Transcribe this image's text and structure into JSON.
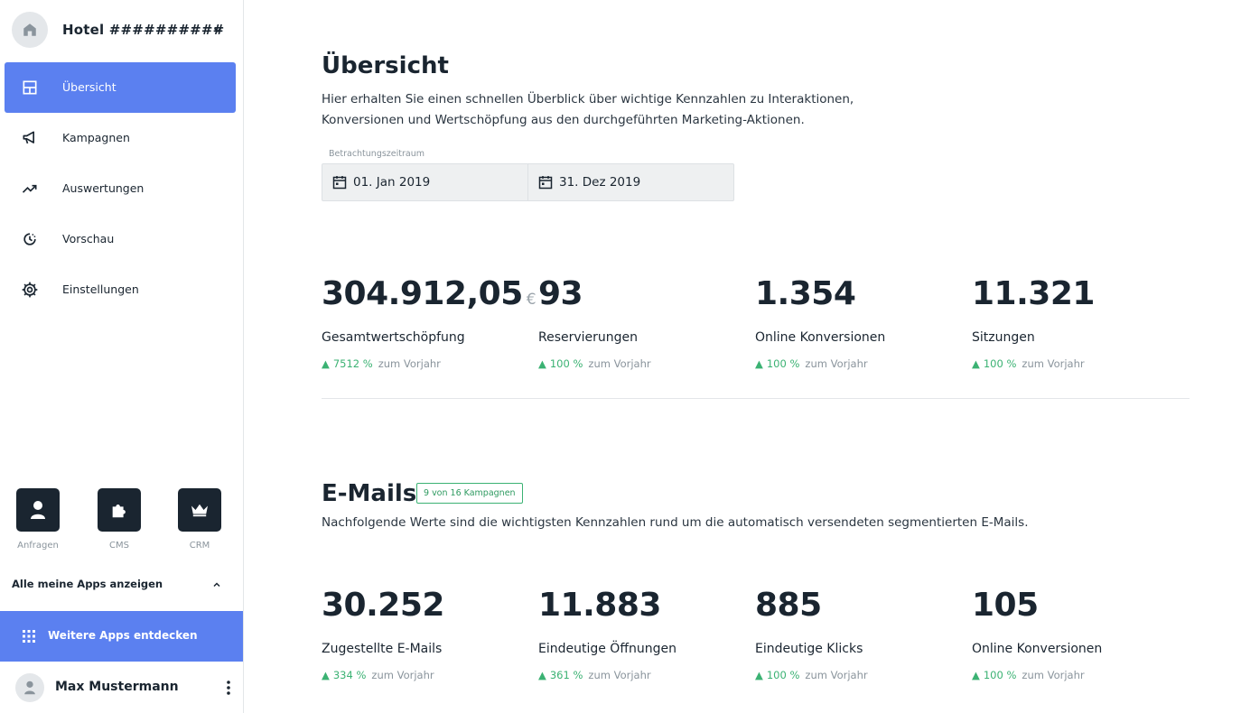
{
  "sidebar": {
    "hotel_name": "Hotel ##########",
    "nav": [
      {
        "label": "Übersicht",
        "icon": "layout-icon",
        "active": true
      },
      {
        "label": "Kampagnen",
        "icon": "megaphone-icon"
      },
      {
        "label": "Auswertungen",
        "icon": "trending-up-icon"
      },
      {
        "label": "Vorschau",
        "icon": "history-icon"
      },
      {
        "label": "Einstellungen",
        "icon": "gear-icon"
      }
    ],
    "apps": [
      {
        "label": "Anfragen",
        "icon": "person-icon"
      },
      {
        "label": "CMS",
        "icon": "puzzle-icon"
      },
      {
        "label": "CRM",
        "icon": "crown-icon"
      }
    ],
    "all_apps_label": "Alle meine Apps anzeigen",
    "more_apps_label": "Weitere Apps entdecken",
    "user_name": "Max Mustermann"
  },
  "overview": {
    "title": "Übersicht",
    "description": "Hier erhalten Sie einen schnellen Überblick über wichtige Kennzahlen zu Interaktionen, Konversionen und Wertschöpfung aus den durchgeführten Marketing-Aktionen.",
    "period_label": "Betrachtungszeitraum",
    "period_start": "01. Jan 2019",
    "period_end": "31. Dez 2019",
    "kpis": [
      {
        "value": "304.912,05",
        "unit": "€",
        "label": "Gesamtwertschöpfung",
        "trend": "7512 %",
        "trend_suffix": "zum Vorjahr"
      },
      {
        "value": "93",
        "label": "Reservierungen",
        "trend": "100 %",
        "trend_suffix": "zum Vorjahr"
      },
      {
        "value": "1.354",
        "label": "Online Konversionen",
        "trend": "100 %",
        "trend_suffix": "zum Vorjahr"
      },
      {
        "value": "11.321",
        "label": "Sitzungen",
        "trend": "100 %",
        "trend_suffix": "zum Vorjahr"
      }
    ]
  },
  "emails": {
    "title": "E-Mails",
    "badge": "9 von 16 Kampagnen",
    "description": "Nachfolgende Werte sind die wichtigsten Kennzahlen rund um die automatisch versendeten segmentierten E-Mails.",
    "kpis": [
      {
        "value": "30.252",
        "label": "Zugestellte E-Mails",
        "trend": "334 %",
        "trend_suffix": "zum Vorjahr"
      },
      {
        "value": "11.883",
        "label": "Eindeutige Öffnungen",
        "trend": "361 %",
        "trend_suffix": "zum Vorjahr"
      },
      {
        "value": "885",
        "label": "Eindeutige Klicks",
        "trend": "100 %",
        "trend_suffix": "zum Vorjahr"
      },
      {
        "value": "105",
        "label": "Online Konversionen",
        "trend": "100 %",
        "trend_suffix": "zum Vorjahr"
      }
    ]
  },
  "colors": {
    "accent": "#5b80f0",
    "positive": "#3bb273",
    "dark": "#1a2530"
  }
}
